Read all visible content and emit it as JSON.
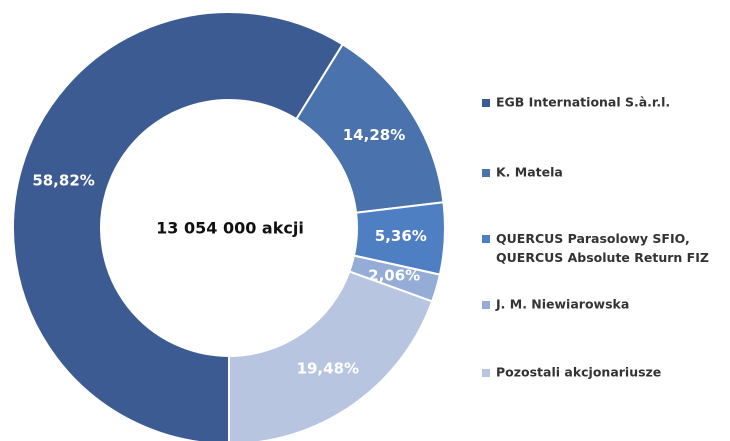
{
  "chart_data": {
    "type": "donut",
    "center_label": "13 054 000 akcji",
    "categories": [
      "EGB International S.à.r.l.",
      "K. Matela",
      [
        "QUERCUS Parasolowy SFIO,",
        "QUERCUS Absolute Return FIZ"
      ],
      "J. M. Niewiarowska",
      "Pozostali akcjonariusze"
    ],
    "values": [
      58.82,
      14.28,
      5.36,
      2.06,
      19.48
    ],
    "value_labels": [
      "58,82%",
      "14,28%",
      "5,36%",
      "2,06%",
      "19,48%"
    ],
    "colors": [
      "#3d5b93",
      "#4a72ad",
      "#4f7fc3",
      "#95acd6",
      "#b8c5e1"
    ],
    "legend": "right"
  }
}
